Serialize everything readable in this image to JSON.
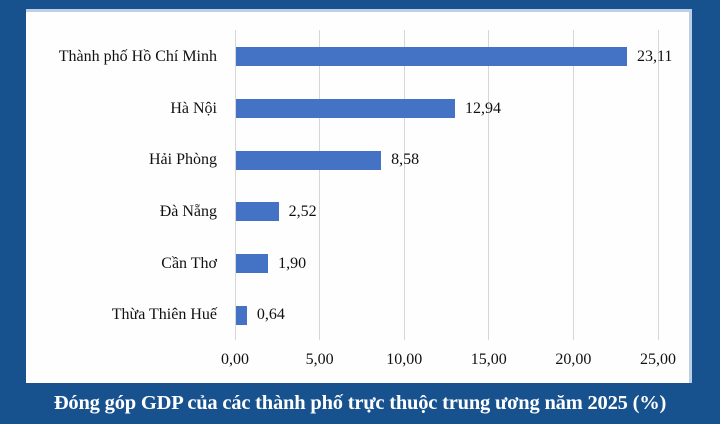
{
  "caption": {
    "text": "Đóng góp GDP của các thành phố trực thuộc trung ương năm 2025 (%)",
    "color": "#FFFFFF"
  },
  "colors": {
    "frame_bg": "#17518E",
    "panel_bg": "#FEFEFE",
    "panel_edge": "#BCCFE7",
    "bar": "#4472C4",
    "gridline": "#D6D6D6",
    "text": "#111111"
  },
  "chart_data": {
    "type": "bar",
    "orientation": "horizontal",
    "title": "Đóng góp GDP của các thành phố trực thuộc trung ương năm 2025 (%)",
    "categories": [
      "Thành phố Hồ Chí Minh",
      "Hà Nội",
      "Hải Phòng",
      "Đà Nẵng",
      "Cần Thơ",
      "Thừa Thiên Huế"
    ],
    "values": [
      23.11,
      12.94,
      8.58,
      2.52,
      1.9,
      0.64
    ],
    "value_labels": [
      "23,11",
      "12,94",
      "8,58",
      "2,52",
      "1,90",
      "0,64"
    ],
    "x_tick_values": [
      0,
      5,
      10,
      15,
      20,
      25
    ],
    "x_tick_labels": [
      "0,00",
      "5,00",
      "10,00",
      "15,00",
      "20,00",
      "25,00"
    ],
    "xlim": [
      0,
      25
    ],
    "grid": true,
    "legend": false,
    "bar_color": "#4472C4"
  }
}
